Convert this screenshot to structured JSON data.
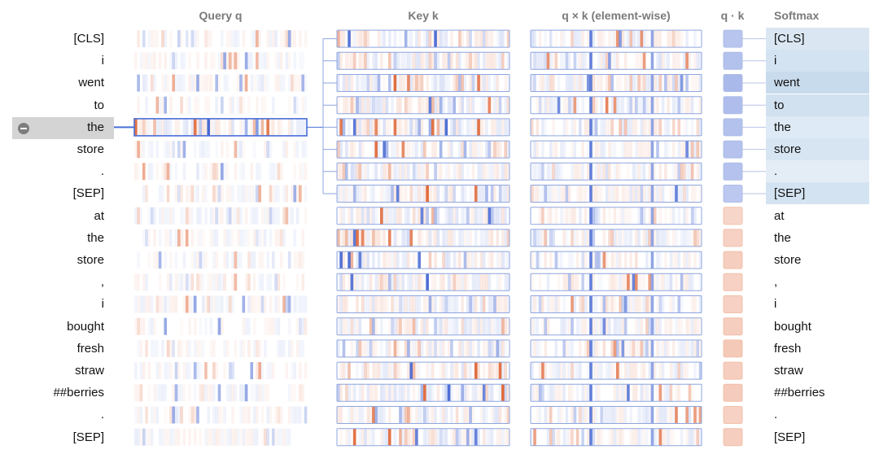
{
  "headers": {
    "query": "Query q",
    "key": "Key k",
    "product": "q × k (element-wise)",
    "dot": "q · k",
    "softmax": "Softmax"
  },
  "tokens": [
    "[CLS]",
    "i",
    "went",
    "to",
    "the",
    "store",
    ".",
    "[SEP]",
    "at",
    "the",
    "store",
    ",",
    "i",
    "bought",
    "fresh",
    "straw",
    "##berries",
    ".",
    "[SEP]"
  ],
  "selected_index": 4,
  "attended_count": 8,
  "softmax_weights": [
    0.1,
    0.14,
    0.22,
    0.16,
    0.08,
    0.12,
    0.04,
    0.14,
    0,
    0,
    0,
    0,
    0,
    0,
    0,
    0,
    0,
    0,
    0
  ],
  "dot_products": [
    0.45,
    0.55,
    0.7,
    0.6,
    0.55,
    0.5,
    0.5,
    0.4,
    -0.2,
    -0.3,
    -0.35,
    -0.3,
    -0.3,
    -0.35,
    -0.45,
    -0.35,
    -0.4,
    -0.3,
    -0.35
  ],
  "colors": {
    "positive": "#3b5fd0",
    "negative": "#e0683a",
    "line": "#4a6fd8",
    "box_border": "#8fa6e0",
    "softmax_bg": "#dfeaf4"
  }
}
